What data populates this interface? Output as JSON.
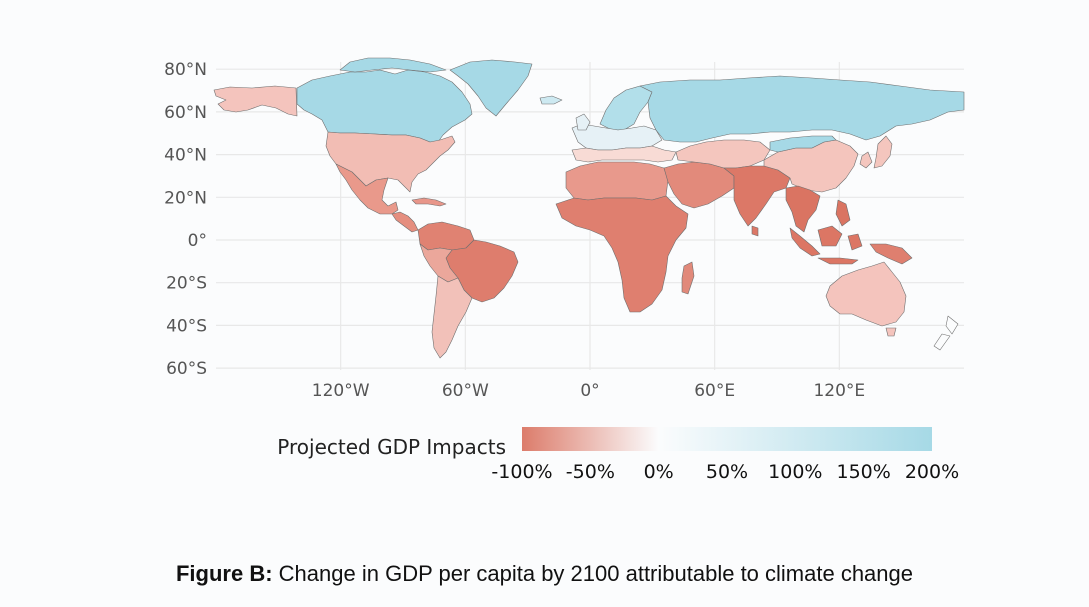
{
  "map": {
    "type": "choropleth",
    "projection": "equirectangular",
    "lat_labels": [
      "80°N",
      "60°N",
      "40°N",
      "20°N",
      "0°",
      "20°S",
      "40°S",
      "60°S"
    ],
    "lat_values": [
      80,
      60,
      40,
      20,
      0,
      -20,
      -40,
      -60
    ],
    "lon_labels": [
      "120°W",
      "60°W",
      "0°",
      "60°E",
      "120°E"
    ],
    "lon_values": [
      -120,
      -60,
      0,
      60,
      120
    ],
    "lon_range": [
      -180,
      180
    ],
    "lat_range": [
      -60,
      85
    ],
    "regions": [
      {
        "name": "Alaska",
        "value": -30,
        "color": "#f4c4bd"
      },
      {
        "name": "Canada",
        "value": 150,
        "color": "#a6d9e6"
      },
      {
        "name": "Greenland",
        "value": 170,
        "color": "#a6d9e6"
      },
      {
        "name": "United States",
        "value": -35,
        "color": "#f2bdb4"
      },
      {
        "name": "Mexico",
        "value": -60,
        "color": "#e9998b"
      },
      {
        "name": "Central America",
        "value": -70,
        "color": "#e58e7f"
      },
      {
        "name": "Caribbean",
        "value": -70,
        "color": "#e8968a"
      },
      {
        "name": "Northern South America",
        "value": -75,
        "color": "#e08272"
      },
      {
        "name": "Brazil",
        "value": -80,
        "color": "#de7d6d"
      },
      {
        "name": "Andes",
        "value": -45,
        "color": "#eba79b"
      },
      {
        "name": "Southern Cone",
        "value": -30,
        "color": "#f2c1b9"
      },
      {
        "name": "Iceland",
        "value": 80,
        "color": "#cde9f1"
      },
      {
        "name": "Scandinavia",
        "value": 140,
        "color": "#b2dfea"
      },
      {
        "name": "Western Europe",
        "value": 40,
        "color": "#e6f1f6"
      },
      {
        "name": "Southern Europe",
        "value": -20,
        "color": "#f8dbd5"
      },
      {
        "name": "Russia",
        "value": 180,
        "color": "#a6d9e6"
      },
      {
        "name": "North Africa",
        "value": -70,
        "color": "#e8998c"
      },
      {
        "name": "Sub-Saharan Africa",
        "value": -85,
        "color": "#df7f6f"
      },
      {
        "name": "Madagascar",
        "value": -80,
        "color": "#e1897a"
      },
      {
        "name": "Middle East",
        "value": -80,
        "color": "#e28a7b"
      },
      {
        "name": "Central Asia",
        "value": -30,
        "color": "#f4c6be"
      },
      {
        "name": "South Asia",
        "value": -85,
        "color": "#dc7867"
      },
      {
        "name": "China",
        "value": -35,
        "color": "#f4c5bd"
      },
      {
        "name": "Mongolia",
        "value": 150,
        "color": "#a6d9e6"
      },
      {
        "name": "Korea and Japan",
        "value": -30,
        "color": "#f4c6be"
      },
      {
        "name": "Southeast Asia",
        "value": -90,
        "color": "#da7462"
      },
      {
        "name": "Indonesia",
        "value": -90,
        "color": "#dc7664"
      },
      {
        "name": "New Guinea",
        "value": -80,
        "color": "#df7f6f"
      },
      {
        "name": "Australia",
        "value": -25,
        "color": "#f4c4bd"
      },
      {
        "name": "New Zealand",
        "value": 10,
        "color": "#fbfcfd"
      }
    ]
  },
  "legend": {
    "title": "Projected GDP Impacts",
    "tick_labels": [
      "-100%",
      "-50%",
      "0%",
      "50%",
      "100%",
      "150%",
      "200%"
    ],
    "tick_values": [
      -100,
      -50,
      0,
      50,
      100,
      150,
      200
    ],
    "colors": {
      "low": "#dc7c6b",
      "mid": "#fbfcfd",
      "high": "#a6d9e6"
    }
  },
  "caption": {
    "label": "Figure B:",
    "text": "Change in GDP per capita by 2100 attributable to climate change"
  }
}
